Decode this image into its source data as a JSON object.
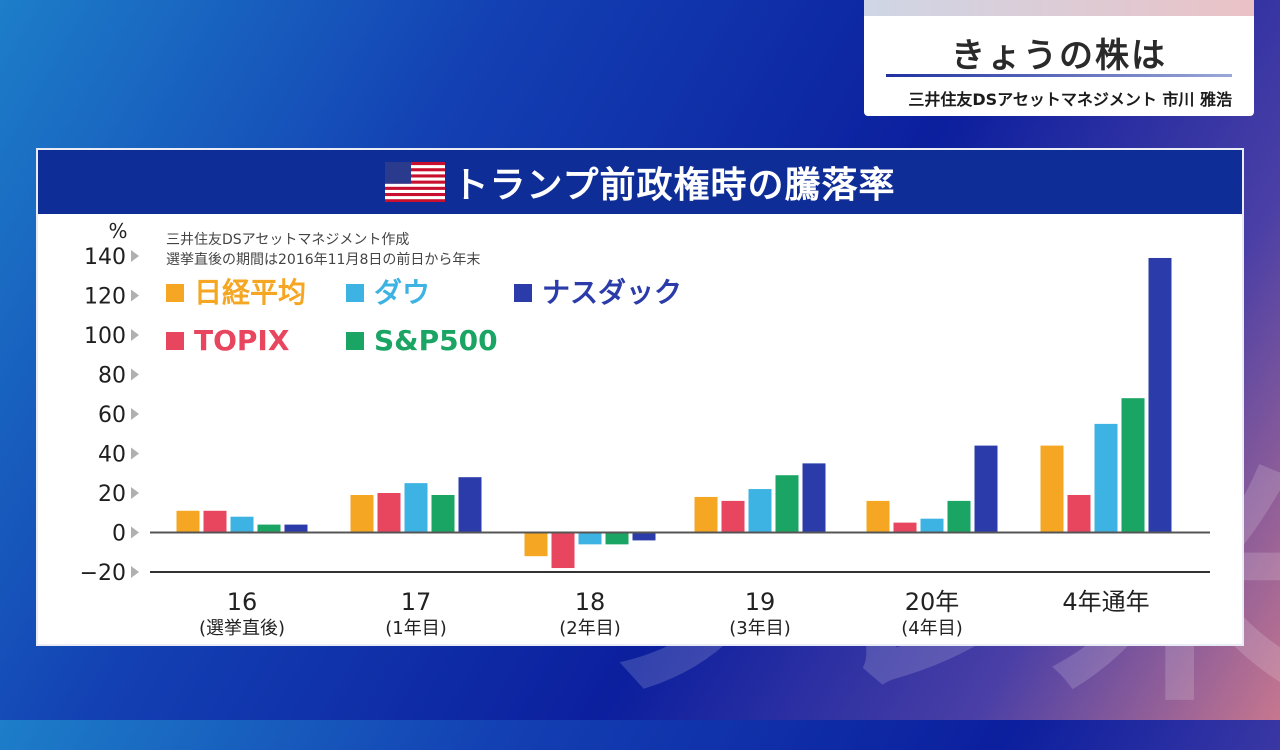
{
  "watermark": "ブレ米",
  "header": {
    "title": "きょうの株は",
    "presenter": "三井住友DSアセットマネジメント 市川 雅浩"
  },
  "panel": {
    "title": "トランプ前政権時の騰落率"
  },
  "chart_data": {
    "type": "bar",
    "unit_label": "%",
    "notes": [
      "三井住友DSアセットマネジメント作成",
      "選挙直後の期間は2016年11月8日の前日から年末"
    ],
    "categories": [
      {
        "year": "16",
        "sub": "(選挙直後)"
      },
      {
        "year": "17",
        "sub": "(1年目)"
      },
      {
        "year": "18",
        "sub": "(2年目)"
      },
      {
        "year": "19",
        "sub": "(3年目)"
      },
      {
        "year": "20年",
        "sub": "(4年目)"
      },
      {
        "year": "4年通年",
        "sub": ""
      }
    ],
    "ylim": [
      -20,
      140
    ],
    "yticks": [
      140,
      120,
      100,
      80,
      60,
      40,
      20,
      0,
      -20
    ],
    "tick_labels": [
      "140",
      "120",
      "100",
      "80",
      "60",
      "40",
      "20",
      "0",
      "−20"
    ],
    "series": [
      {
        "name": "日経平均",
        "color": "#f5a623",
        "values": [
          11,
          19,
          -12,
          18,
          16,
          44
        ]
      },
      {
        "name": "TOPIX",
        "color": "#e8455f",
        "values": [
          11,
          20,
          -18,
          16,
          5,
          19
        ]
      },
      {
        "name": "ダウ",
        "color": "#3db3e3",
        "values": [
          8,
          25,
          -6,
          22,
          7,
          55
        ]
      },
      {
        "name": "S&P500",
        "color": "#1aa564",
        "values": [
          4,
          19,
          -6,
          29,
          16,
          68
        ]
      },
      {
        "name": "ナスダック",
        "color": "#2b3caa",
        "values": [
          4,
          28,
          -4,
          35,
          44,
          139
        ]
      }
    ]
  }
}
